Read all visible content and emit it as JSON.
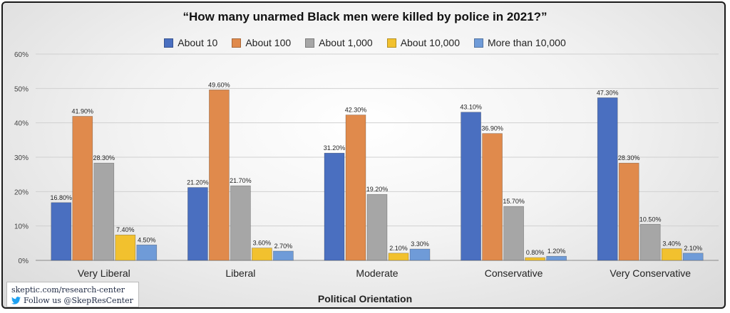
{
  "chart_data": {
    "type": "bar",
    "title": "“How many unarmed Black men were killed by police in 2021?”",
    "xlabel": "Political Orientation",
    "ylabel": "",
    "ylim": [
      0,
      60
    ],
    "yticks": [
      "0%",
      "10%",
      "20%",
      "30%",
      "40%",
      "50%",
      "60%"
    ],
    "grid": true,
    "legend_position": "top",
    "categories": [
      "Very Liberal",
      "Liberal",
      "Moderate",
      "Conservative",
      "Very Conservative"
    ],
    "series": [
      {
        "name": "About 10",
        "color": "#4a6fc0",
        "values": [
          16.8,
          21.2,
          31.2,
          43.1,
          47.3
        ],
        "labels": [
          "16.80%",
          "21.20%",
          "31.20%",
          "43.10%",
          "47.30%"
        ]
      },
      {
        "name": "About 100",
        "color": "#e08a4c",
        "values": [
          41.9,
          49.6,
          42.3,
          36.9,
          28.3
        ],
        "labels": [
          "41.90%",
          "49.60%",
          "42.30%",
          "36.90%",
          "28.30%"
        ]
      },
      {
        "name": "About 1,000",
        "color": "#a6a6a6",
        "values": [
          28.3,
          21.7,
          19.2,
          15.7,
          10.5
        ],
        "labels": [
          "28.30%",
          "21.70%",
          "19.20%",
          "15.70%",
          "10.50%"
        ]
      },
      {
        "name": "About 10,000",
        "color": "#f2c12e",
        "values": [
          7.4,
          3.6,
          2.1,
          0.8,
          3.4
        ],
        "labels": [
          "7.40%",
          "3.60%",
          "2.10%",
          "0.80%",
          "3.40%"
        ]
      },
      {
        "name": "More than 10,000",
        "color": "#6f9bd8",
        "values": [
          4.5,
          2.7,
          3.3,
          1.2,
          2.1
        ],
        "labels": [
          "4.50%",
          "2.70%",
          "3.30%",
          "1.20%",
          "2.10%"
        ]
      }
    ]
  },
  "credit": {
    "url": "skeptic.com/research-center",
    "follow": "Follow us @SkepResCenter",
    "icon": "twitter-bird-icon",
    "icon_color": "#1da1f2"
  }
}
